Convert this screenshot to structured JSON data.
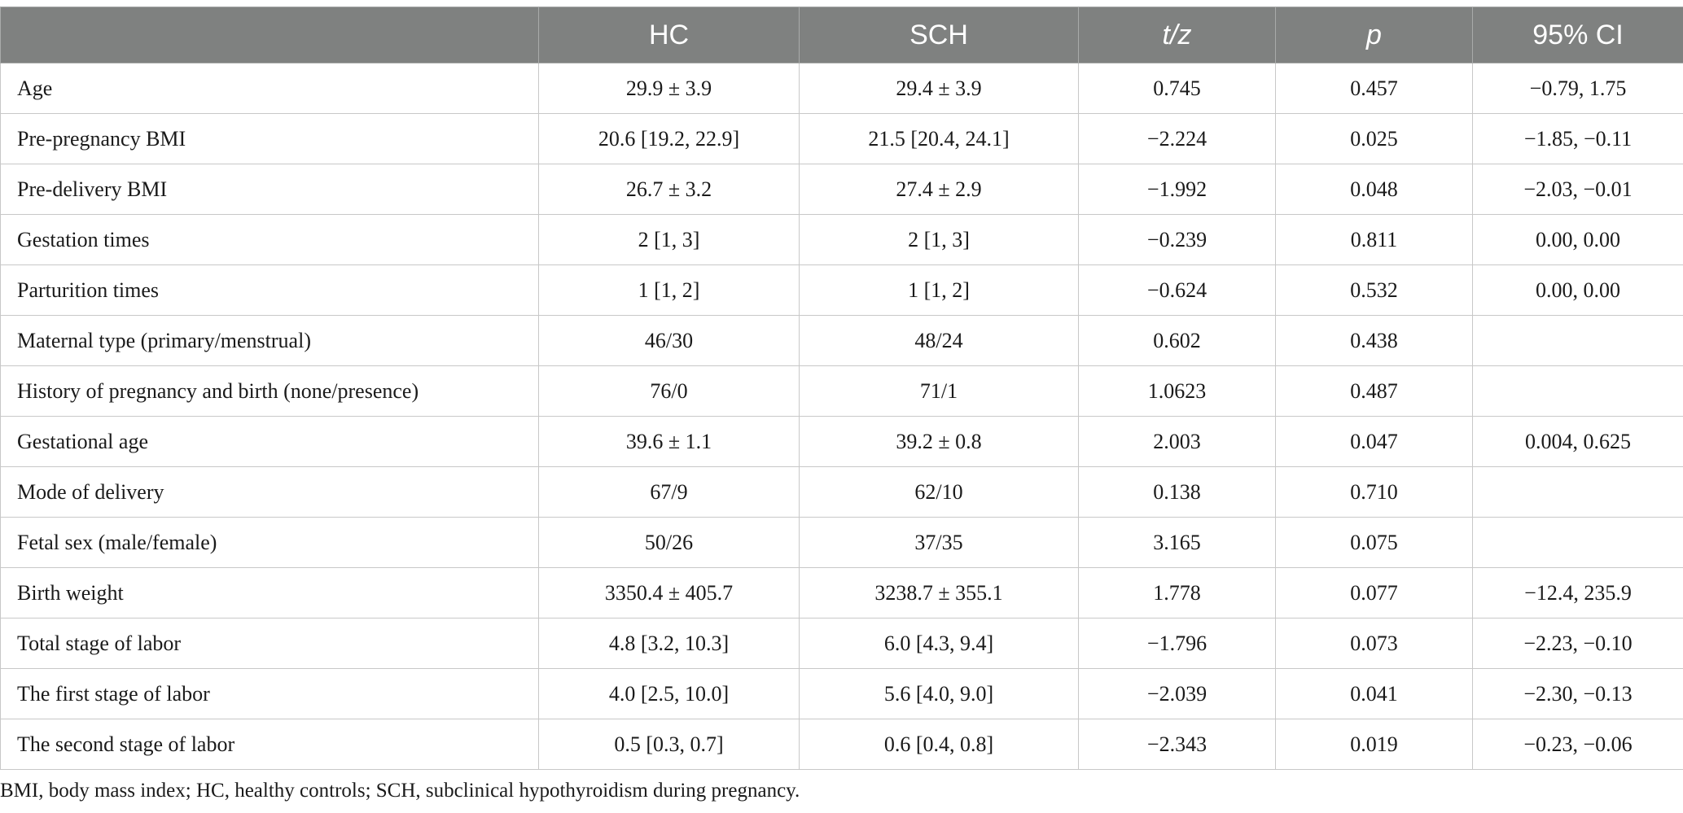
{
  "table": {
    "headers": [
      "",
      "HC",
      "SCH",
      "t/z",
      "p",
      "95% CI"
    ],
    "rows": [
      [
        "Age",
        "29.9 ± 3.9",
        "29.4 ± 3.9",
        "0.745",
        "0.457",
        "−0.79, 1.75"
      ],
      [
        "Pre-pregnancy BMI",
        "20.6 [19.2, 22.9]",
        "21.5 [20.4, 24.1]",
        "−2.224",
        "0.025",
        "−1.85, −0.11"
      ],
      [
        "Pre-delivery BMI",
        "26.7 ± 3.2",
        "27.4 ± 2.9",
        "−1.992",
        "0.048",
        "−2.03, −0.01"
      ],
      [
        "Gestation times",
        "2 [1, 3]",
        "2 [1, 3]",
        "−0.239",
        "0.811",
        "0.00, 0.00"
      ],
      [
        "Parturition times",
        "1 [1, 2]",
        "1 [1, 2]",
        "−0.624",
        "0.532",
        "0.00, 0.00"
      ],
      [
        "Maternal type (primary/menstrual)",
        "46/30",
        "48/24",
        "0.602",
        "0.438",
        ""
      ],
      [
        "History of pregnancy and birth (none/presence)",
        "76/0",
        "71/1",
        "1.0623",
        "0.487",
        ""
      ],
      [
        "Gestational age",
        "39.6 ± 1.1",
        "39.2 ± 0.8",
        "2.003",
        "0.047",
        "0.004, 0.625"
      ],
      [
        "Mode of delivery",
        "67/9",
        "62/10",
        "0.138",
        "0.710",
        ""
      ],
      [
        "Fetal sex (male/female)",
        "50/26",
        "37/35",
        "3.165",
        "0.075",
        ""
      ],
      [
        "Birth weight",
        "3350.4 ± 405.7",
        "3238.7 ± 355.1",
        "1.778",
        "0.077",
        "−12.4, 235.9"
      ],
      [
        "Total stage of labor",
        "4.8 [3.2, 10.3]",
        "6.0 [4.3, 9.4]",
        "−1.796",
        "0.073",
        "−2.23, −0.10"
      ],
      [
        "The first stage of labor",
        "4.0 [2.5, 10.0]",
        "5.6 [4.0, 9.0]",
        "−2.039",
        "0.041",
        "−2.30, −0.13"
      ],
      [
        "The second stage of labor",
        "0.5 [0.3, 0.7]",
        "0.6 [0.4, 0.8]",
        "−2.343",
        "0.019",
        "−0.23, −0.06"
      ]
    ]
  },
  "footnote": "BMI, body mass index; HC, healthy controls; SCH, subclinical hypothyroidism during pregnancy.",
  "colors": {
    "header_bg": "#7f8180",
    "header_text": "#ffffff",
    "grid_line": "#c8c8c8"
  }
}
